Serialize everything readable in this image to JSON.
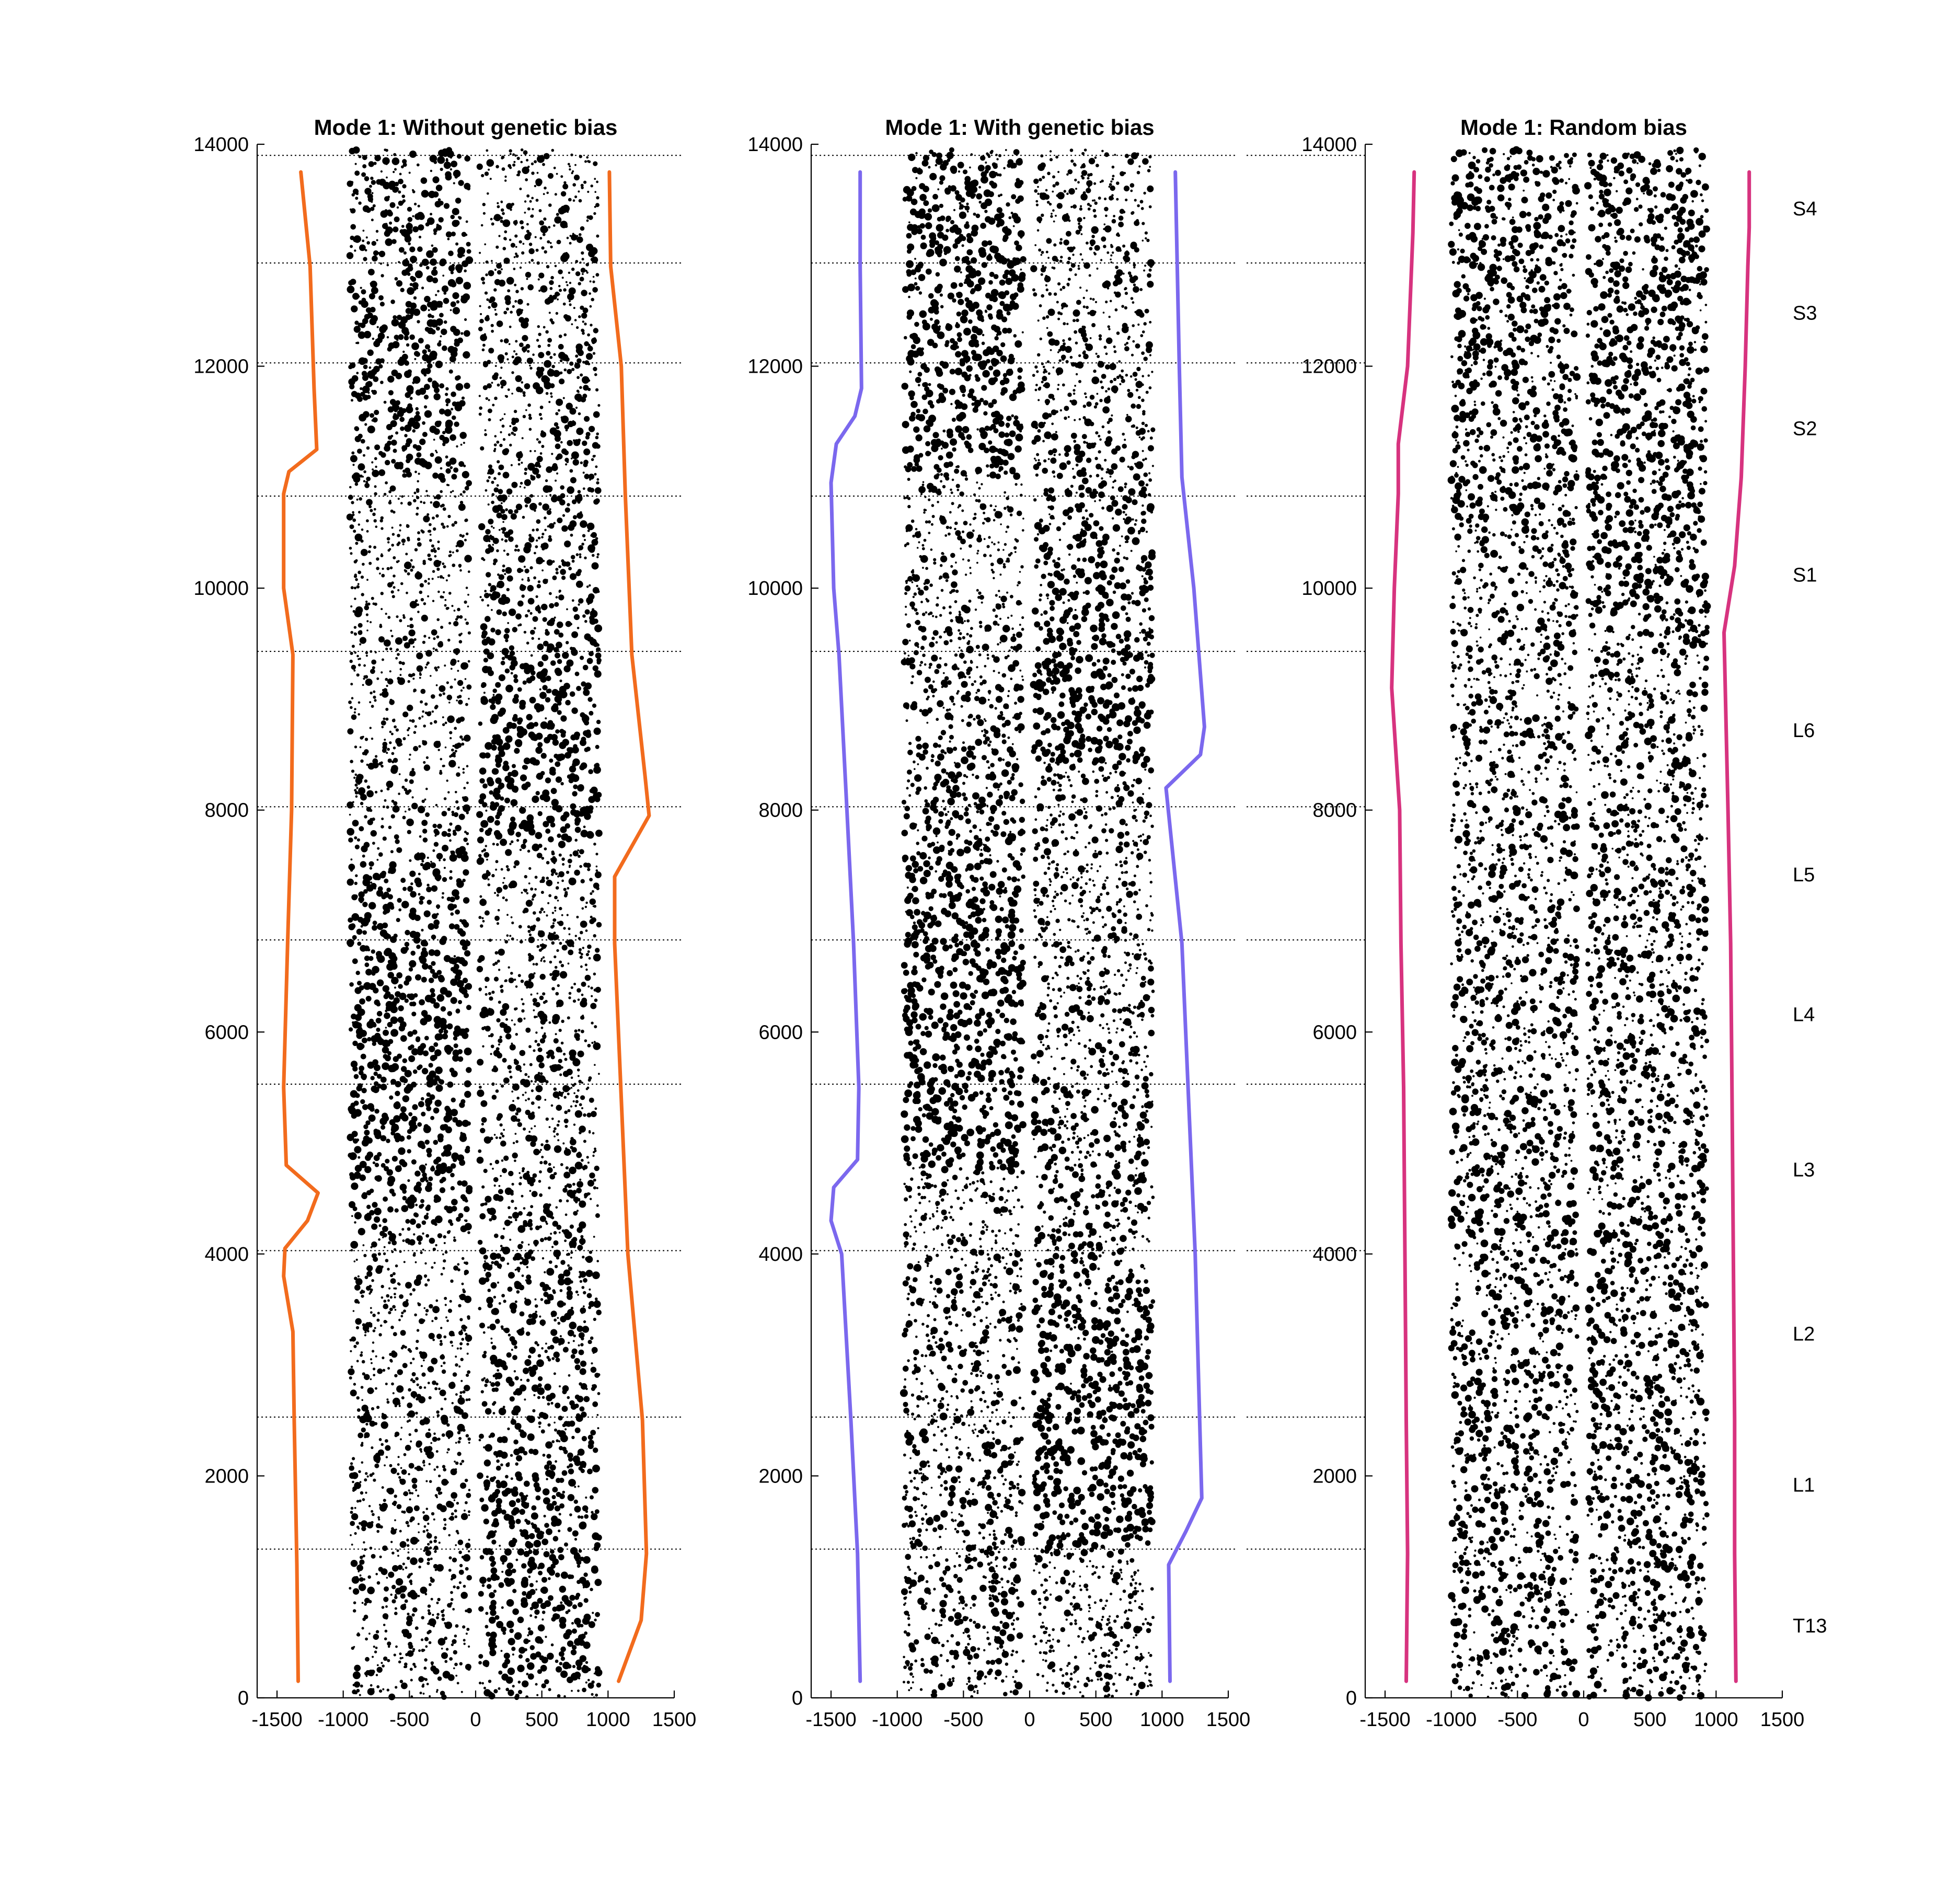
{
  "chart_data": [
    {
      "type": "scatter",
      "title": "Mode 1: Without genetic bias",
      "xlim": [
        -1650,
        1500
      ],
      "ylim": [
        0,
        14000
      ],
      "xticks": [
        -1500,
        -1000,
        -500,
        0,
        500,
        1000,
        1500
      ],
      "yticks": [
        0,
        2000,
        4000,
        6000,
        8000,
        10000,
        12000,
        14000
      ],
      "xrange_points": [
        -950,
        950
      ],
      "line_color": "#F26B1D",
      "left_boundary": [
        [
          -1340,
          150
        ],
        [
          -1350,
          1200
        ],
        [
          -1370,
          2500
        ],
        [
          -1380,
          3300
        ],
        [
          -1450,
          3800
        ],
        [
          -1440,
          4050
        ],
        [
          -1270,
          4300
        ],
        [
          -1190,
          4550
        ],
        [
          -1430,
          4800
        ],
        [
          -1450,
          5500
        ],
        [
          -1420,
          6800
        ],
        [
          -1390,
          8000
        ],
        [
          -1380,
          9400
        ],
        [
          -1450,
          10000
        ],
        [
          -1450,
          10850
        ],
        [
          -1410,
          11050
        ],
        [
          -1200,
          11250
        ],
        [
          -1220,
          11800
        ],
        [
          -1250,
          12900
        ],
        [
          -1320,
          13750
        ]
      ],
      "right_boundary": [
        [
          1080,
          150
        ],
        [
          1250,
          700
        ],
        [
          1290,
          1300
        ],
        [
          1260,
          2500
        ],
        [
          1150,
          4000
        ],
        [
          1050,
          6800
        ],
        [
          1050,
          7400
        ],
        [
          1310,
          7950
        ],
        [
          1280,
          8300
        ],
        [
          1180,
          9400
        ],
        [
          1130,
          10850
        ],
        [
          1100,
          12000
        ],
        [
          1020,
          12900
        ],
        [
          1010,
          13750
        ]
      ],
      "density": [
        {
          "side": "L",
          "profile": [
            [
              0,
              0.35
            ],
            [
              1300,
              0.35
            ],
            [
              2500,
              0.3
            ],
            [
              3000,
              0.25
            ],
            [
              4000,
              0.12
            ],
            [
              4300,
              0.85
            ],
            [
              5500,
              1.0
            ],
            [
              6800,
              0.95
            ],
            [
              7800,
              0.5
            ],
            [
              8000,
              0.3
            ],
            [
              9400,
              0.22
            ],
            [
              10000,
              0.08
            ],
            [
              10850,
              0.1
            ],
            [
              11100,
              0.7
            ],
            [
              12000,
              0.85
            ],
            [
              12900,
              0.7
            ],
            [
              13900,
              0.45
            ]
          ]
        },
        {
          "side": "R",
          "profile": [
            [
              0,
              0.55
            ],
            [
              500,
              0.75
            ],
            [
              1300,
              0.8
            ],
            [
              2000,
              0.75
            ],
            [
              2500,
              0.6
            ],
            [
              4000,
              0.45
            ],
            [
              5500,
              0.35
            ],
            [
              6800,
              0.25
            ],
            [
              7600,
              0.3
            ],
            [
              7800,
              0.95
            ],
            [
              8700,
              1.0
            ],
            [
              9500,
              0.8
            ],
            [
              10000,
              0.5
            ],
            [
              10800,
              0.45
            ],
            [
              12000,
              0.35
            ],
            [
              13900,
              0.25
            ]
          ]
        }
      ],
      "seed": 11
    },
    {
      "type": "scatter",
      "title": "Mode 1: With genetic bias",
      "xlim": [
        -1650,
        1500
      ],
      "ylim": [
        0,
        14000
      ],
      "xticks": [
        -1500,
        -1000,
        -500,
        0,
        500,
        1000,
        1500
      ],
      "yticks": [
        0,
        2000,
        4000,
        6000,
        8000,
        10000,
        12000,
        14000
      ],
      "xrange_points": [
        -950,
        950
      ],
      "line_color": "#7B68EE",
      "left_boundary": [
        [
          -1280,
          150
        ],
        [
          -1300,
          1300
        ],
        [
          -1350,
          2500
        ],
        [
          -1420,
          4000
        ],
        [
          -1500,
          4300
        ],
        [
          -1480,
          4600
        ],
        [
          -1300,
          4850
        ],
        [
          -1290,
          5500
        ],
        [
          -1330,
          6800
        ],
        [
          -1380,
          8000
        ],
        [
          -1440,
          9400
        ],
        [
          -1480,
          10000
        ],
        [
          -1500,
          10950
        ],
        [
          -1460,
          11300
        ],
        [
          -1320,
          11550
        ],
        [
          -1270,
          11800
        ],
        [
          -1280,
          12900
        ],
        [
          -1280,
          13750
        ]
      ],
      "right_boundary": [
        [
          1060,
          150
        ],
        [
          1050,
          1200
        ],
        [
          1180,
          1500
        ],
        [
          1300,
          1800
        ],
        [
          1250,
          4000
        ],
        [
          1150,
          6800
        ],
        [
          1030,
          8200
        ],
        [
          1290,
          8500
        ],
        [
          1320,
          8750
        ],
        [
          1240,
          10000
        ],
        [
          1150,
          11000
        ],
        [
          1130,
          12000
        ],
        [
          1100,
          13750
        ]
      ],
      "density": [
        {
          "side": "L",
          "profile": [
            [
              0,
              0.4
            ],
            [
              1300,
              0.45
            ],
            [
              2500,
              0.35
            ],
            [
              3800,
              0.3
            ],
            [
              4000,
              0.15
            ],
            [
              4700,
              0.2
            ],
            [
              4800,
              1.0
            ],
            [
              6800,
              1.0
            ],
            [
              8000,
              0.7
            ],
            [
              9400,
              0.35
            ],
            [
              10000,
              0.15
            ],
            [
              10900,
              0.15
            ],
            [
              11100,
              0.9
            ],
            [
              12900,
              0.85
            ],
            [
              13900,
              0.6
            ]
          ]
        },
        {
          "side": "R",
          "profile": [
            [
              0,
              0.15
            ],
            [
              1200,
              0.15
            ],
            [
              1400,
              0.95
            ],
            [
              2500,
              1.0
            ],
            [
              3600,
              0.8
            ],
            [
              4000,
              0.55
            ],
            [
              5500,
              0.45
            ],
            [
              6800,
              0.3
            ],
            [
              8300,
              0.25
            ],
            [
              8500,
              1.0
            ],
            [
              9400,
              0.9
            ],
            [
              10000,
              0.75
            ],
            [
              11000,
              0.5
            ],
            [
              12000,
              0.25
            ],
            [
              13900,
              0.25
            ]
          ]
        }
      ],
      "seed": 23
    },
    {
      "type": "scatter",
      "title": "Mode 1: Random bias",
      "xlim": [
        -1650,
        1500
      ],
      "ylim": [
        0,
        14000
      ],
      "xticks": [
        -1500,
        -1000,
        -500,
        0,
        500,
        1000,
        1500
      ],
      "yticks": [
        0,
        2000,
        4000,
        6000,
        8000,
        10000,
        12000,
        14000
      ],
      "xrange_points": [
        -1000,
        950
      ],
      "line_color": "#D7337F",
      "left_boundary": [
        [
          -1340,
          150
        ],
        [
          -1330,
          1300
        ],
        [
          -1340,
          2500
        ],
        [
          -1350,
          4000
        ],
        [
          -1360,
          5500
        ],
        [
          -1380,
          6800
        ],
        [
          -1390,
          8000
        ],
        [
          -1450,
          9100
        ],
        [
          -1430,
          10000
        ],
        [
          -1400,
          10850
        ],
        [
          -1400,
          11300
        ],
        [
          -1330,
          12000
        ],
        [
          -1300,
          12900
        ],
        [
          -1290,
          13200
        ],
        [
          -1280,
          13750
        ]
      ],
      "right_boundary": [
        [
          1150,
          150
        ],
        [
          1140,
          1300
        ],
        [
          1140,
          2500
        ],
        [
          1130,
          4000
        ],
        [
          1120,
          5500
        ],
        [
          1110,
          6800
        ],
        [
          1090,
          8000
        ],
        [
          1060,
          9600
        ],
        [
          1140,
          10200
        ],
        [
          1190,
          11000
        ],
        [
          1220,
          12000
        ],
        [
          1240,
          12900
        ],
        [
          1250,
          13250
        ],
        [
          1250,
          13750
        ]
      ],
      "density": [
        {
          "side": "L",
          "profile": [
            [
              0,
              0.5
            ],
            [
              1300,
              0.5
            ],
            [
              4000,
              0.55
            ],
            [
              5500,
              0.5
            ],
            [
              8000,
              0.4
            ],
            [
              9400,
              0.35
            ],
            [
              10000,
              0.3
            ],
            [
              10900,
              0.55
            ],
            [
              12000,
              0.75
            ],
            [
              13900,
              0.8
            ]
          ]
        },
        {
          "side": "R",
          "profile": [
            [
              0,
              0.5
            ],
            [
              1300,
              0.5
            ],
            [
              4000,
              0.55
            ],
            [
              5500,
              0.5
            ],
            [
              8000,
              0.4
            ],
            [
              9400,
              0.3
            ],
            [
              9800,
              0.75
            ],
            [
              12000,
              0.85
            ],
            [
              13900,
              0.8
            ]
          ]
        }
      ],
      "seed": 37
    }
  ],
  "segment_boundaries": [
    1340,
    2530,
    4030,
    5530,
    6830,
    8030,
    9430,
    10830,
    12030,
    12930,
    13900
  ],
  "segment_labels": [
    {
      "label": "T13",
      "y": 650
    },
    {
      "label": "L1",
      "y": 1920
    },
    {
      "label": "L2",
      "y": 3280
    },
    {
      "label": "L3",
      "y": 4760
    },
    {
      "label": "L4",
      "y": 6160
    },
    {
      "label": "L5",
      "y": 7420
    },
    {
      "label": "L6",
      "y": 8720
    },
    {
      "label": "S1",
      "y": 10120
    },
    {
      "label": "S2",
      "y": 11440
    },
    {
      "label": "S3",
      "y": 12480
    },
    {
      "label": "S4",
      "y": 13420
    }
  ]
}
